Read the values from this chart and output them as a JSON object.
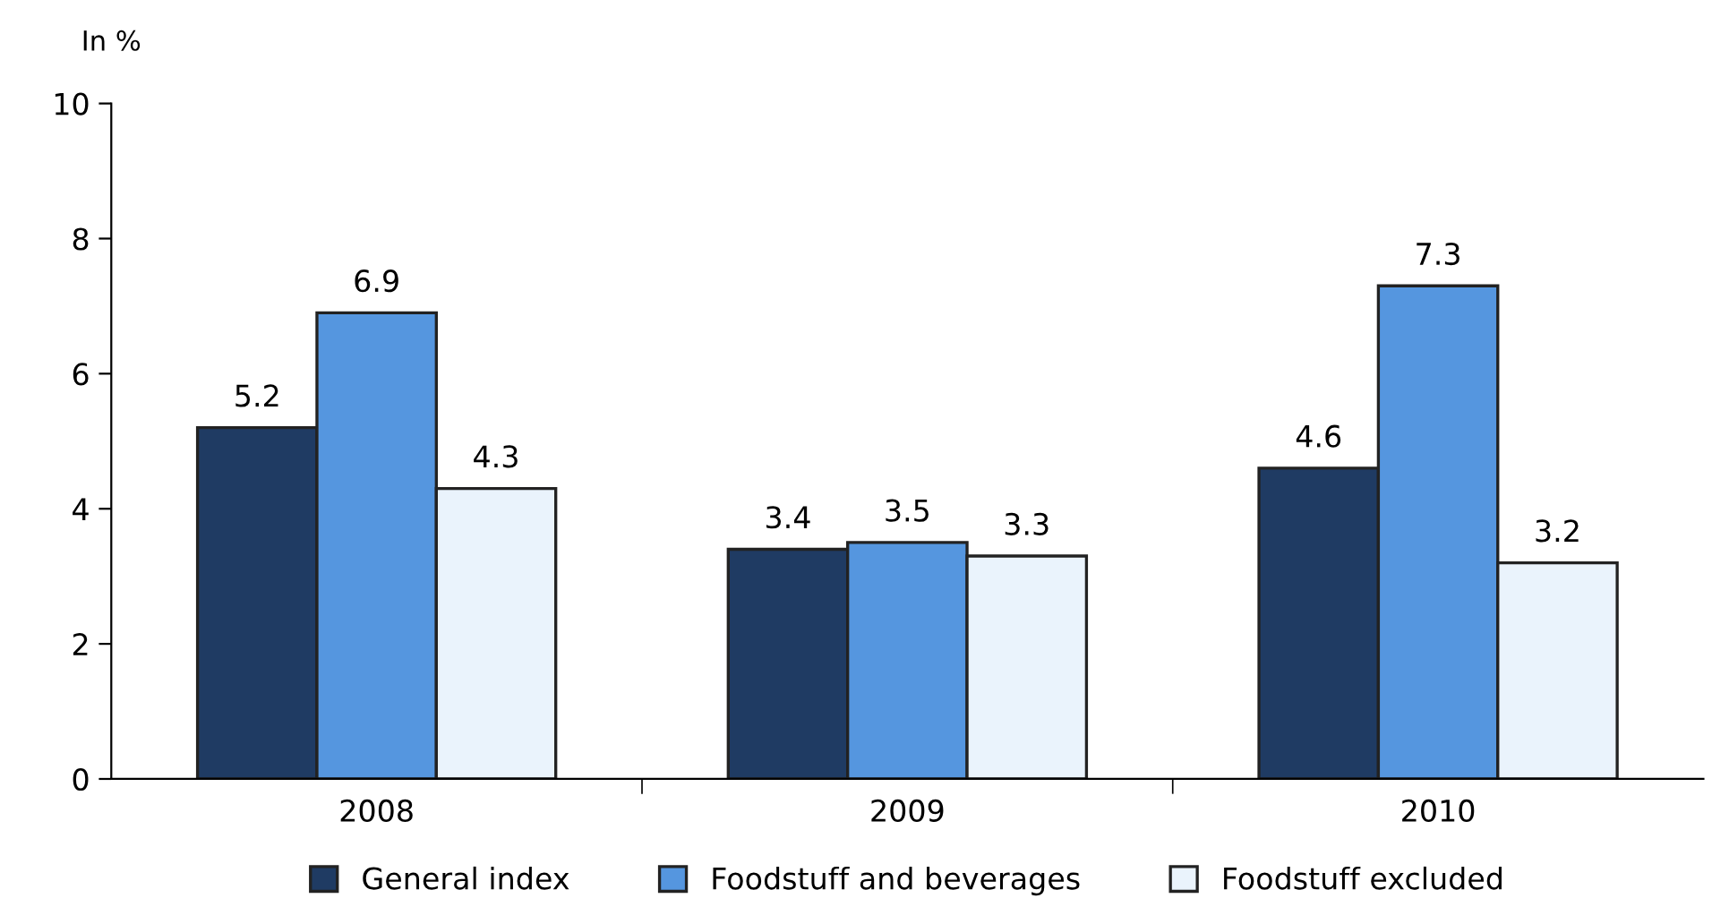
{
  "chart_data": {
    "type": "bar",
    "ylabel": "In %",
    "categories": [
      "2008",
      "2009",
      "2010"
    ],
    "series": [
      {
        "name": "General index",
        "color": "#1f3b63",
        "values": [
          5.2,
          3.4,
          4.6
        ]
      },
      {
        "name": "Foodstuff and beverages",
        "color": "#5596df",
        "values": [
          6.9,
          3.5,
          7.3
        ]
      },
      {
        "name": "Foodstuff excluded",
        "color": "#eaf3fc",
        "values": [
          4.3,
          3.3,
          3.2
        ]
      }
    ],
    "ylim": [
      0,
      10
    ],
    "yticks": [
      0,
      2,
      4,
      6,
      8,
      10
    ],
    "data_labels": true,
    "legend": "bottom",
    "grid": false
  }
}
